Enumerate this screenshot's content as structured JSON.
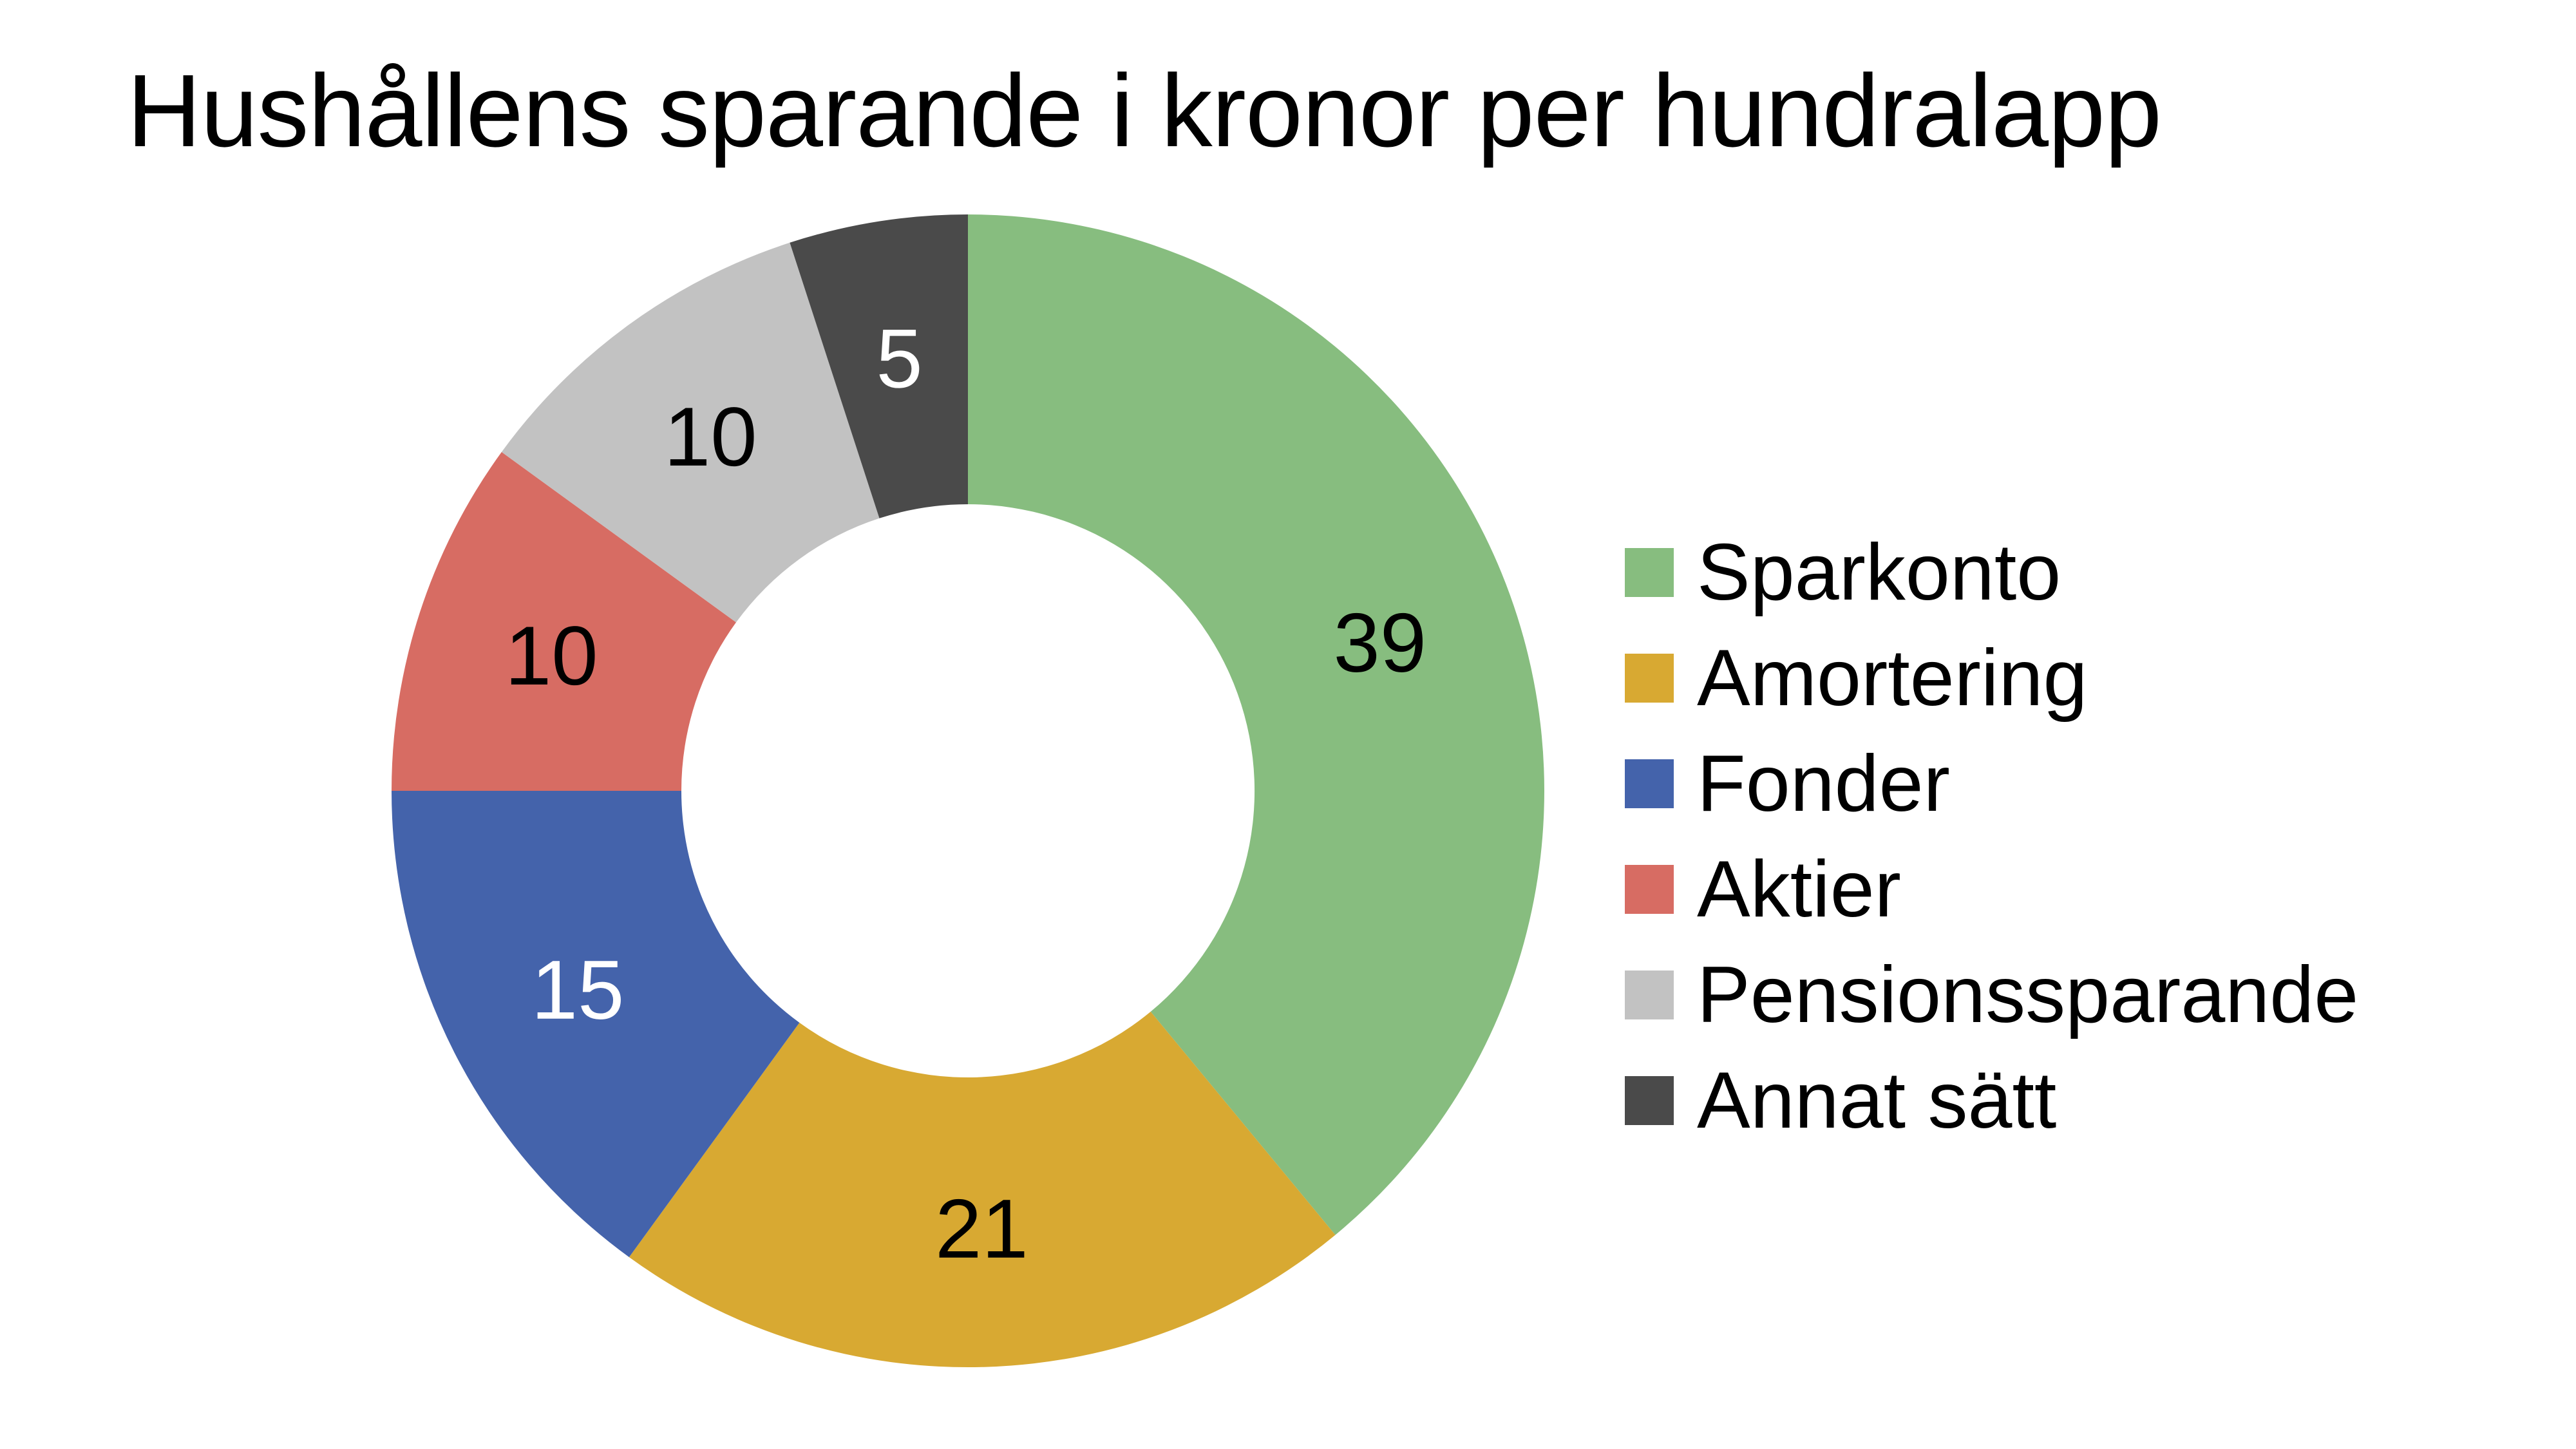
{
  "chart_data": {
    "type": "pie",
    "variant": "donut",
    "title": "Hushållens sparande i kronor per hundralapp",
    "start_angle_deg": 0,
    "direction": "clockwise",
    "total": 100,
    "legend_position": "right",
    "background_color": "#FFFFFF",
    "title_color": "#000000",
    "slices": [
      {
        "label": "Sparkonto",
        "value": 39,
        "color": "#87BD7F",
        "value_label_color": "#000000"
      },
      {
        "label": "Amortering",
        "value": 21,
        "color": "#D8A932",
        "value_label_color": "#000000"
      },
      {
        "label": "Fonder",
        "value": 15,
        "color": "#4463AB",
        "value_label_color": "#FFFFFF"
      },
      {
        "label": "Aktier",
        "value": 10,
        "color": "#D76C63",
        "value_label_color": "#000000"
      },
      {
        "label": "Pensionssparande",
        "value": 10,
        "color": "#C2C2C2",
        "value_label_color": "#000000"
      },
      {
        "label": "Annat sätt",
        "value": 5,
        "color": "#4A4A4A",
        "value_label_color": "#FFFFFF"
      }
    ]
  }
}
